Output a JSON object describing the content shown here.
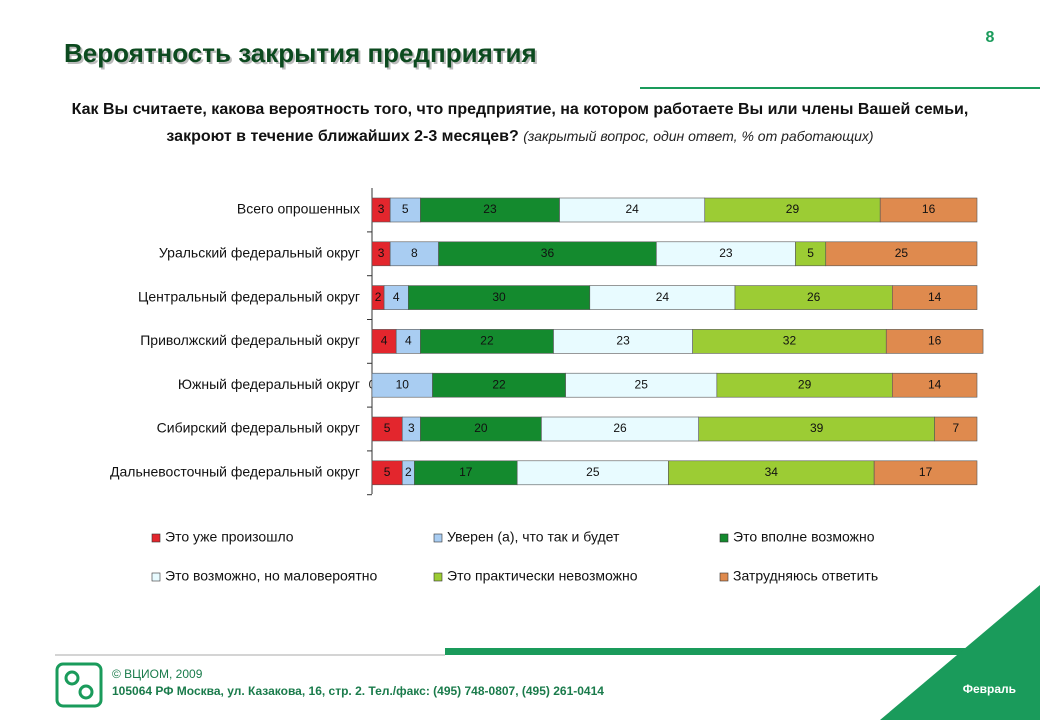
{
  "page": {
    "number": "8",
    "title": "Вероятность закрытия предприятия",
    "question": "Как Вы считаете, какова вероятность того, что предприятие, на котором работаете Вы или члены Вашей семьи, закроют в течение ближайших 2-3 месяцев?",
    "question_note": "(закрытый вопрос, один ответ, % от работающих)",
    "footer": {
      "copyright": "© ВЦИОМ, 2009",
      "address": "105064 РФ Москва, ул. Казакова, 16, стр. 2. Тел./факс: (495) 748-0807, (495) 261-0414",
      "month": "Февраль"
    }
  },
  "chart_data": {
    "type": "bar",
    "orientation": "horizontal",
    "stacked": true,
    "categories": [
      "Всего опрошенных",
      "Уральский федеральный округ",
      "Центральный федеральный округ",
      "Приволжский федеральный округ",
      "Южный федеральный округ",
      "Сибирский федеральный округ",
      "Дальневосточный федеральный округ"
    ],
    "xlim": [
      0,
      100
    ],
    "series": [
      {
        "name": "Это уже произошло",
        "color": "#e3262d",
        "values": [
          3,
          3,
          2,
          4,
          0,
          5,
          5
        ]
      },
      {
        "name": "Уверен (а), что так и будет",
        "color": "#a9cdf2",
        "values": [
          5,
          8,
          4,
          4,
          10,
          3,
          2
        ]
      },
      {
        "name": "Это вполне возможно",
        "color": "#148a2e",
        "values": [
          23,
          36,
          30,
          22,
          22,
          20,
          17
        ]
      },
      {
        "name": "Это возможно, но маловероятно",
        "color": "#e8fbff",
        "values": [
          24,
          23,
          24,
          23,
          25,
          26,
          25
        ]
      },
      {
        "name": "Это практически невозможно",
        "color": "#9ccc34",
        "values": [
          29,
          5,
          26,
          32,
          29,
          39,
          34
        ]
      },
      {
        "name": "Затрудняюсь ответить",
        "color": "#df8a4e",
        "values": [
          16,
          25,
          14,
          16,
          14,
          7,
          17
        ]
      }
    ]
  }
}
